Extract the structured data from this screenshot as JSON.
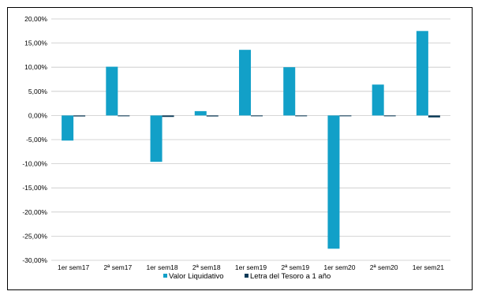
{
  "chart_data": {
    "type": "bar",
    "categories": [
      "1er sem17",
      "2ª sem17",
      "1er sem18",
      "2ª sem18",
      "1er sem19",
      "2ª sem19",
      "1er sem20",
      "2ª sem20",
      "1er sem21"
    ],
    "series": [
      {
        "name": "Valor Liquidativo",
        "color": "#12a0c8",
        "values": [
          -5.2,
          10.1,
          -9.6,
          0.9,
          13.6,
          10.0,
          -27.6,
          6.4,
          17.5
        ]
      },
      {
        "name": "Letra del Tesoro a 1 año",
        "color": "#0b3a57",
        "values": [
          -0.2,
          -0.1,
          -0.3,
          -0.2,
          -0.1,
          -0.1,
          -0.1,
          -0.1,
          -0.4
        ]
      }
    ],
    "ylim": [
      -30,
      20
    ],
    "ytick_step": 5,
    "ytick_labels": [
      "20,00%",
      "15,00%",
      "10,00%",
      "5,00%",
      "0,00%",
      "-5,00%",
      "-10,00%",
      "-15,00%",
      "-20,00%",
      "-25,00%",
      "-30,00%"
    ],
    "grid": true,
    "legend_position": "bottom"
  }
}
